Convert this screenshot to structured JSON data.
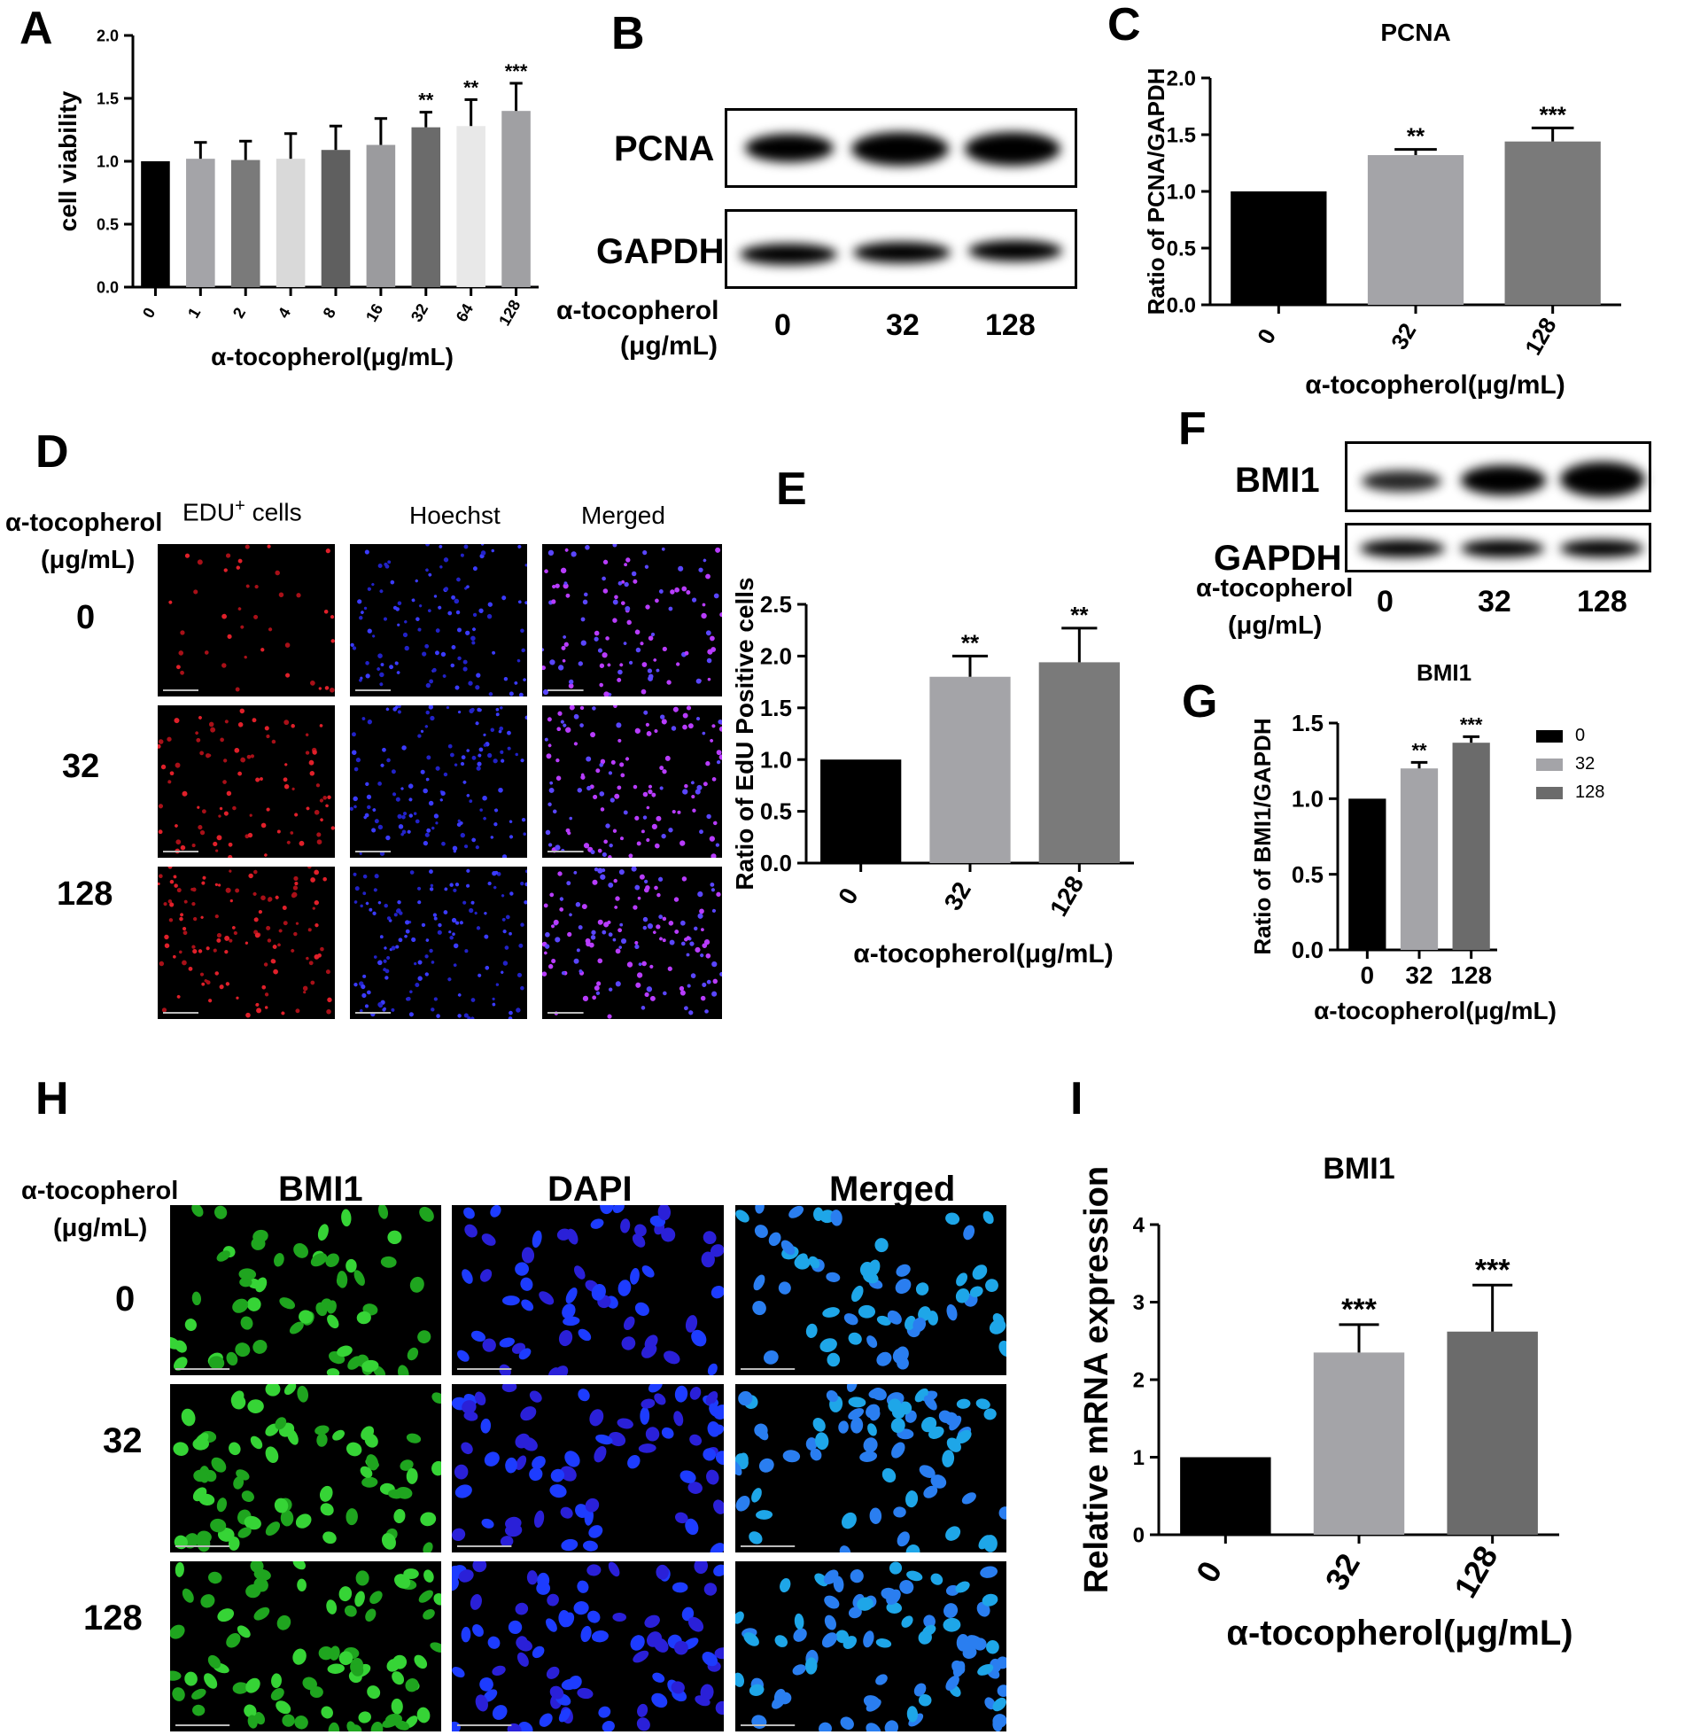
{
  "panel_labels": {
    "A": "A",
    "B": "B",
    "C": "C",
    "D": "D",
    "E": "E",
    "F": "F",
    "G": "G",
    "H": "H",
    "I": "I"
  },
  "colors": {
    "g0": "#000000",
    "g1": "#a4a4a8",
    "g2": "#7a7a7a",
    "g3": "#d9d9d9",
    "g4": "#5f5f5f",
    "g5": "#9b9b9e",
    "g6": "#6b6b6b",
    "g7": "#e8e8e8",
    "g8": "#a0a0a3"
  },
  "panel_b": {
    "pcna": "PCNA",
    "gapdh": "GAPDH",
    "treat_label_1": "α-tocopherol",
    "treat_label_2": "(μg/mL)",
    "lanes": [
      "0",
      "32",
      "128"
    ]
  },
  "panel_d": {
    "treat_label_1": "α-tocopherol",
    "treat_label_2": "(μg/mL)",
    "col_edu": "EDU",
    "col_edu_sup": "+",
    "col_edu_tail": " cells",
    "col_hoechst": "Hoechst",
    "col_merged": "Merged",
    "rows": [
      "0",
      "32",
      "128"
    ]
  },
  "panel_f": {
    "bmi1": "BMI1",
    "gapdh": "GAPDH",
    "treat_label_1": "α-tocopherol",
    "treat_label_2": "(μg/mL)",
    "lanes": [
      "0",
      "32",
      "128"
    ]
  },
  "panel_h": {
    "treat_label_1": "α-tocopherol",
    "treat_label_2": "(μg/mL)",
    "col_bmi1": "BMI1",
    "col_dapi": "DAPI",
    "col_merged": "Merged",
    "rows": [
      "0",
      "32",
      "128"
    ]
  },
  "chart_data": [
    {
      "id": "A",
      "type": "bar",
      "title": "",
      "xlabel": "α-tocopherol(μg/mL)",
      "ylabel": "cell viability",
      "categories": [
        "0",
        "1",
        "2",
        "4",
        "8",
        "16",
        "32",
        "64",
        "128"
      ],
      "values": [
        1.0,
        1.02,
        1.01,
        1.02,
        1.09,
        1.13,
        1.27,
        1.28,
        1.4
      ],
      "errors": [
        0,
        0.13,
        0.15,
        0.2,
        0.19,
        0.21,
        0.12,
        0.21,
        0.22
      ],
      "significance": [
        "",
        "",
        "",
        "",
        "",
        "",
        "**",
        "**",
        "***"
      ],
      "ylim": [
        0,
        2.0
      ],
      "yticks": [
        "0.0",
        "0.5",
        "1.0",
        "1.5",
        "2.0"
      ],
      "xtick_rotation": -60
    },
    {
      "id": "C",
      "type": "bar",
      "title": "PCNA",
      "xlabel": "α-tocopherol(μg/mL)",
      "ylabel": "Ratio of PCNA/GAPDH",
      "categories": [
        "0",
        "32",
        "128"
      ],
      "values": [
        1.0,
        1.32,
        1.44
      ],
      "errors": [
        0,
        0.05,
        0.12
      ],
      "significance": [
        "",
        "**",
        "***"
      ],
      "ylim": [
        0,
        2.0
      ],
      "yticks": [
        "0.0",
        "0.5",
        "1.0",
        "1.5",
        "2.0"
      ],
      "xtick_rotation": -60
    },
    {
      "id": "E",
      "type": "bar",
      "title": "",
      "xlabel": "α-tocopherol(μg/mL)",
      "ylabel": "Ratio of EdU Positive cells",
      "categories": [
        "0",
        "32",
        "128"
      ],
      "values": [
        1.0,
        1.8,
        1.94
      ],
      "errors": [
        0,
        0.2,
        0.33
      ],
      "significance": [
        "",
        "**",
        "**"
      ],
      "ylim": [
        0,
        2.5
      ],
      "yticks": [
        "0.0",
        "0.5",
        "1.0",
        "1.5",
        "2.0",
        "2.5"
      ],
      "xtick_rotation": -60
    },
    {
      "id": "G",
      "type": "bar",
      "title": "BMI1",
      "xlabel": "α-tocopherol(μg/mL)",
      "ylabel": "Ratio of BMI1/GAPDH",
      "categories": [
        "0",
        "32",
        "128"
      ],
      "values": [
        1.0,
        1.2,
        1.37
      ],
      "errors": [
        0,
        0.04,
        0.04
      ],
      "significance": [
        "",
        "**",
        "***"
      ],
      "ylim": [
        0,
        1.5
      ],
      "yticks": [
        "0.0",
        "0.5",
        "1.0",
        "1.5"
      ],
      "xtick_rotation": 0,
      "legend": [
        "0",
        "32",
        "128"
      ],
      "legend_position": "right"
    },
    {
      "id": "I",
      "type": "bar",
      "title": "BMI1",
      "xlabel": "α-tocopherol(μg/mL)",
      "ylabel": "Relative mRNA expression",
      "categories": [
        "0",
        "32",
        "128"
      ],
      "values": [
        1.0,
        2.35,
        2.62
      ],
      "errors": [
        0,
        0.36,
        0.6
      ],
      "significance": [
        "",
        "***",
        "***"
      ],
      "ylim": [
        0,
        4
      ],
      "yticks": [
        "0",
        "1",
        "2",
        "3",
        "4"
      ],
      "xtick_rotation": -60
    }
  ]
}
